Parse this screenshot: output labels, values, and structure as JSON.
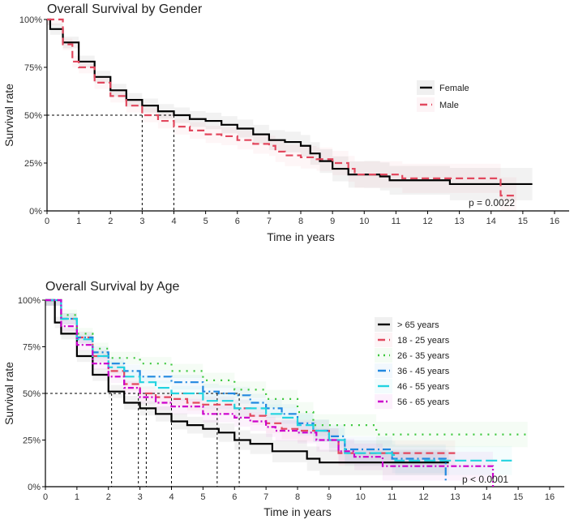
{
  "chart_data": [
    {
      "type": "line",
      "subtype": "kaplan-meier",
      "title": "Overall Survival by Gender",
      "xlabel": "Time in years",
      "ylabel": "Survival rate",
      "xlim": [
        0,
        16
      ],
      "ylim": [
        0,
        1
      ],
      "xticks": [
        "0",
        "1",
        "2",
        "3",
        "4",
        "5",
        "6",
        "7",
        "8",
        "9",
        "10",
        "11",
        "12",
        "13",
        "14",
        "15",
        "16"
      ],
      "yticks": [
        "0%",
        "25%",
        "50%",
        "75%",
        "100%"
      ],
      "legend_position": "top-right",
      "pvalue": "p = 0.0022",
      "median_survival": [
        3,
        4
      ],
      "series": [
        {
          "name": "Female",
          "color": "#000000",
          "style": "solid",
          "x": [
            0,
            0.1,
            0.5,
            1,
            1.5,
            2,
            2.5,
            3,
            3.5,
            4,
            4.5,
            5,
            5.5,
            6,
            6.5,
            7,
            7.5,
            8,
            8.3,
            8.6,
            9,
            9.5,
            10,
            10.5,
            10.8,
            12.7,
            15.3
          ],
          "y": [
            1,
            0.95,
            0.88,
            0.78,
            0.7,
            0.63,
            0.58,
            0.55,
            0.52,
            0.5,
            0.48,
            0.47,
            0.45,
            0.43,
            0.4,
            0.37,
            0.36,
            0.34,
            0.3,
            0.26,
            0.22,
            0.19,
            0.19,
            0.18,
            0.16,
            0.14,
            0.14
          ]
        },
        {
          "name": "Male",
          "color": "#E2485E",
          "style": "dashed",
          "x": [
            0,
            0.5,
            0.8,
            1,
            1.5,
            2,
            2.5,
            3,
            3.5,
            4,
            4.5,
            5,
            5.5,
            6,
            6.5,
            7,
            7.2,
            7.5,
            8,
            8.5,
            9,
            9.5,
            9.7,
            11.2,
            14.3,
            14.8
          ],
          "y": [
            1,
            0.87,
            0.78,
            0.75,
            0.67,
            0.6,
            0.55,
            0.5,
            0.47,
            0.44,
            0.42,
            0.4,
            0.39,
            0.37,
            0.35,
            0.34,
            0.31,
            0.29,
            0.28,
            0.27,
            0.25,
            0.22,
            0.19,
            0.17,
            0.08,
            0.08
          ]
        }
      ]
    },
    {
      "type": "line",
      "subtype": "kaplan-meier",
      "title": "Overall Survival by Age",
      "xlabel": "Time in years",
      "ylabel": "Survival rate",
      "xlim": [
        0,
        16
      ],
      "ylim": [
        0,
        1
      ],
      "xticks": [
        "0",
        "1",
        "2",
        "3",
        "4",
        "5",
        "6",
        "7",
        "8",
        "9",
        "10",
        "11",
        "12",
        "13",
        "14",
        "15",
        "16"
      ],
      "yticks": [
        "0%",
        "25%",
        "50%",
        "75%",
        "100%"
      ],
      "legend_position": "top-right",
      "pvalue": "p < 0.0001",
      "median_survival": [
        2.1,
        2.95,
        3.2,
        4,
        5.45,
        6.15
      ],
      "series": [
        {
          "name": "> 65 years",
          "color": "#000000",
          "style": "solid",
          "x": [
            0,
            0.3,
            0.5,
            1,
            1.5,
            2,
            2.5,
            3,
            3.5,
            4,
            4.5,
            5,
            5.5,
            6,
            6.5,
            7.2,
            8.3,
            8.7,
            12.8
          ],
          "y": [
            1,
            0.88,
            0.82,
            0.7,
            0.6,
            0.51,
            0.45,
            0.42,
            0.39,
            0.35,
            0.33,
            0.31,
            0.29,
            0.25,
            0.23,
            0.19,
            0.15,
            0.13,
            0.13
          ]
        },
        {
          "name": "18 - 25 years",
          "color": "#E2485E",
          "style": "dashed",
          "x": [
            0,
            0.5,
            1,
            1.5,
            2,
            2.5,
            3,
            3.5,
            4,
            4.5,
            5,
            6,
            6.5,
            7,
            7.5,
            8,
            9,
            9.3,
            13
          ],
          "y": [
            1,
            0.9,
            0.8,
            0.7,
            0.62,
            0.55,
            0.5,
            0.48,
            0.47,
            0.45,
            0.44,
            0.42,
            0.38,
            0.34,
            0.31,
            0.3,
            0.25,
            0.18,
            0.18
          ]
        },
        {
          "name": "26 - 35 years",
          "color": "#3CC83C",
          "style": "dotted",
          "x": [
            0,
            0.5,
            1,
            1.5,
            2,
            3,
            4,
            5,
            6,
            7,
            8,
            8.5,
            10.5,
            15.3
          ],
          "y": [
            1,
            0.92,
            0.82,
            0.74,
            0.69,
            0.66,
            0.62,
            0.57,
            0.52,
            0.47,
            0.4,
            0.33,
            0.28,
            0.28
          ]
        },
        {
          "name": "36 - 45 years",
          "color": "#2188E0",
          "style": "dashdot",
          "x": [
            0,
            0.5,
            1,
            1.5,
            2,
            2.5,
            3,
            4,
            5,
            5.5,
            6,
            6.5,
            7,
            7.5,
            8,
            8.5,
            9,
            9.5,
            11,
            12.7,
            12.7
          ],
          "y": [
            1,
            0.9,
            0.8,
            0.72,
            0.66,
            0.62,
            0.59,
            0.56,
            0.51,
            0.5,
            0.49,
            0.45,
            0.42,
            0.39,
            0.34,
            0.3,
            0.27,
            0.2,
            0.15,
            0.15,
            0.03
          ]
        },
        {
          "name": "46 - 55 years",
          "color": "#22D3E0",
          "style": "longdash",
          "x": [
            0,
            0.5,
            1,
            1.5,
            2,
            2.5,
            3,
            3.5,
            4,
            5,
            6,
            7,
            7.5,
            8,
            8.5,
            9,
            9.5,
            11,
            11.1,
            14.8
          ],
          "y": [
            1,
            0.9,
            0.79,
            0.7,
            0.64,
            0.59,
            0.56,
            0.53,
            0.5,
            0.46,
            0.42,
            0.39,
            0.37,
            0.33,
            0.3,
            0.25,
            0.18,
            0.17,
            0.14,
            0.14
          ]
        },
        {
          "name": "56 - 65 years",
          "color": "#CC00CC",
          "style": "twodash",
          "x": [
            0,
            0.5,
            1,
            1.5,
            2,
            2.5,
            3,
            3.5,
            4,
            5,
            6,
            6.5,
            7,
            7.3,
            8,
            8.6,
            9.3,
            9.8,
            10.7,
            14.2,
            14.2
          ],
          "y": [
            1,
            0.86,
            0.76,
            0.66,
            0.59,
            0.53,
            0.48,
            0.45,
            0.43,
            0.39,
            0.37,
            0.35,
            0.32,
            0.3,
            0.29,
            0.25,
            0.19,
            0.16,
            0.11,
            0.11,
            0
          ]
        }
      ]
    }
  ]
}
